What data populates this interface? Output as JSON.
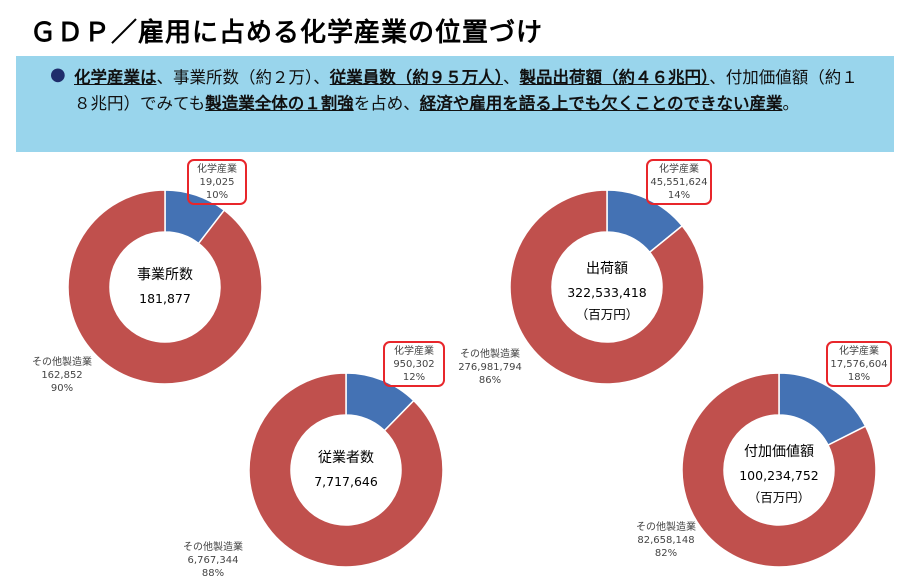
{
  "title": "ＧＤＰ／雇用に占める化学産業の位置づけ",
  "banner": {
    "bullet": "●",
    "segments": [
      {
        "text": "化学産業は",
        "style": "u"
      },
      {
        "text": "、事業所数（約２万）、",
        "style": "n"
      },
      {
        "text": "従業員数（約９５万人）",
        "style": "u"
      },
      {
        "text": "、",
        "style": "n"
      },
      {
        "text": "製品出荷額（約４６兆円）",
        "style": "u"
      },
      {
        "text": "、付加価値額（約１８兆円）でみても",
        "style": "n"
      },
      {
        "text": "製造業全体の１割強",
        "style": "u"
      },
      {
        "text": "を占め、",
        "style": "n"
      },
      {
        "text": "経済や雇用を語る上でも欠くことのできない産業",
        "style": "u"
      },
      {
        "text": "。",
        "style": "n"
      }
    ]
  },
  "colors": {
    "chemical": "#4472b4",
    "other": "#c0504d",
    "highlight": "#e8262b"
  },
  "chart_data": [
    {
      "type": "pie",
      "center_label": "事業所数",
      "total": "181,877",
      "unit": "",
      "categories": [
        "化学産業",
        "その他製造業"
      ],
      "values": [
        19025,
        162852
      ],
      "value_labels": [
        "19,025",
        "162,852"
      ],
      "percents": [
        "10%",
        "90%"
      ]
    },
    {
      "type": "pie",
      "center_label": "従業者数",
      "total": "7,717,646",
      "unit": "",
      "categories": [
        "化学産業",
        "その他製造業"
      ],
      "values": [
        950302,
        6767344
      ],
      "value_labels": [
        "950,302",
        "6,767,344"
      ],
      "percents": [
        "12%",
        "88%"
      ]
    },
    {
      "type": "pie",
      "center_label": "出荷額",
      "total": "322,533,418",
      "unit": "（百万円）",
      "categories": [
        "化学産業",
        "その他製造業"
      ],
      "values": [
        45551624,
        276981794
      ],
      "value_labels": [
        "45,551,624",
        "276,981,794"
      ],
      "percents": [
        "14%",
        "86%"
      ]
    },
    {
      "type": "pie",
      "center_label": "付加価値額",
      "total": "100,234,752",
      "unit": "（百万円）",
      "categories": [
        "化学産業",
        "その他製造業"
      ],
      "values": [
        17576604,
        82658148
      ],
      "value_labels": [
        "17,576,604",
        "82,658,148"
      ],
      "percents": [
        "18%",
        "82%"
      ]
    }
  ]
}
